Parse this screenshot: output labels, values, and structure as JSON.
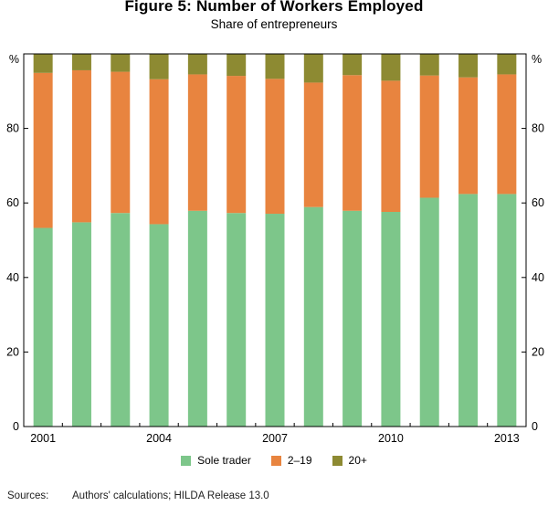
{
  "header": {
    "title": "Figure 5: Number of Workers Employed",
    "subtitle": "Share of entrepreneurs"
  },
  "chart_data": {
    "type": "bar",
    "stacked": true,
    "title": "Figure 5: Number of Workers Employed",
    "subtitle": "Share of entrepreneurs",
    "unit_label": "%",
    "categories": [
      "2001",
      "2002",
      "2003",
      "2004",
      "2005",
      "2006",
      "2007",
      "2008",
      "2009",
      "2010",
      "2011",
      "2012",
      "2013"
    ],
    "x_tick_labels": [
      "2001",
      "",
      "",
      "2004",
      "",
      "",
      "2007",
      "",
      "",
      "2010",
      "",
      "",
      "2013"
    ],
    "y_ticks": [
      0,
      20,
      40,
      60,
      80
    ],
    "ylim": [
      0,
      100
    ],
    "series": [
      {
        "name": "Sole trader",
        "color": "#7dc68a",
        "values": [
          53.3,
          54.8,
          57.3,
          54.3,
          57.9,
          57.3,
          57.1,
          58.9,
          57.9,
          57.6,
          61.4,
          62.4,
          62.4
        ]
      },
      {
        "name": "2–19",
        "color": "#e8843f",
        "values": [
          41.6,
          40.8,
          37.9,
          38.9,
          36.6,
          36.8,
          36.2,
          33.4,
          36.4,
          35.2,
          32.8,
          31.3,
          32.1
        ]
      },
      {
        "name": "20+",
        "color": "#8d8a32",
        "values": [
          5.1,
          4.4,
          4.8,
          6.8,
          5.5,
          5.9,
          6.7,
          7.7,
          5.7,
          7.2,
          5.8,
          6.3,
          5.5
        ]
      }
    ],
    "legend_position": "bottom-center"
  },
  "footer": {
    "sources_label": "Sources:",
    "sources_text": "Authors' calculations; HILDA Release 13.0"
  }
}
